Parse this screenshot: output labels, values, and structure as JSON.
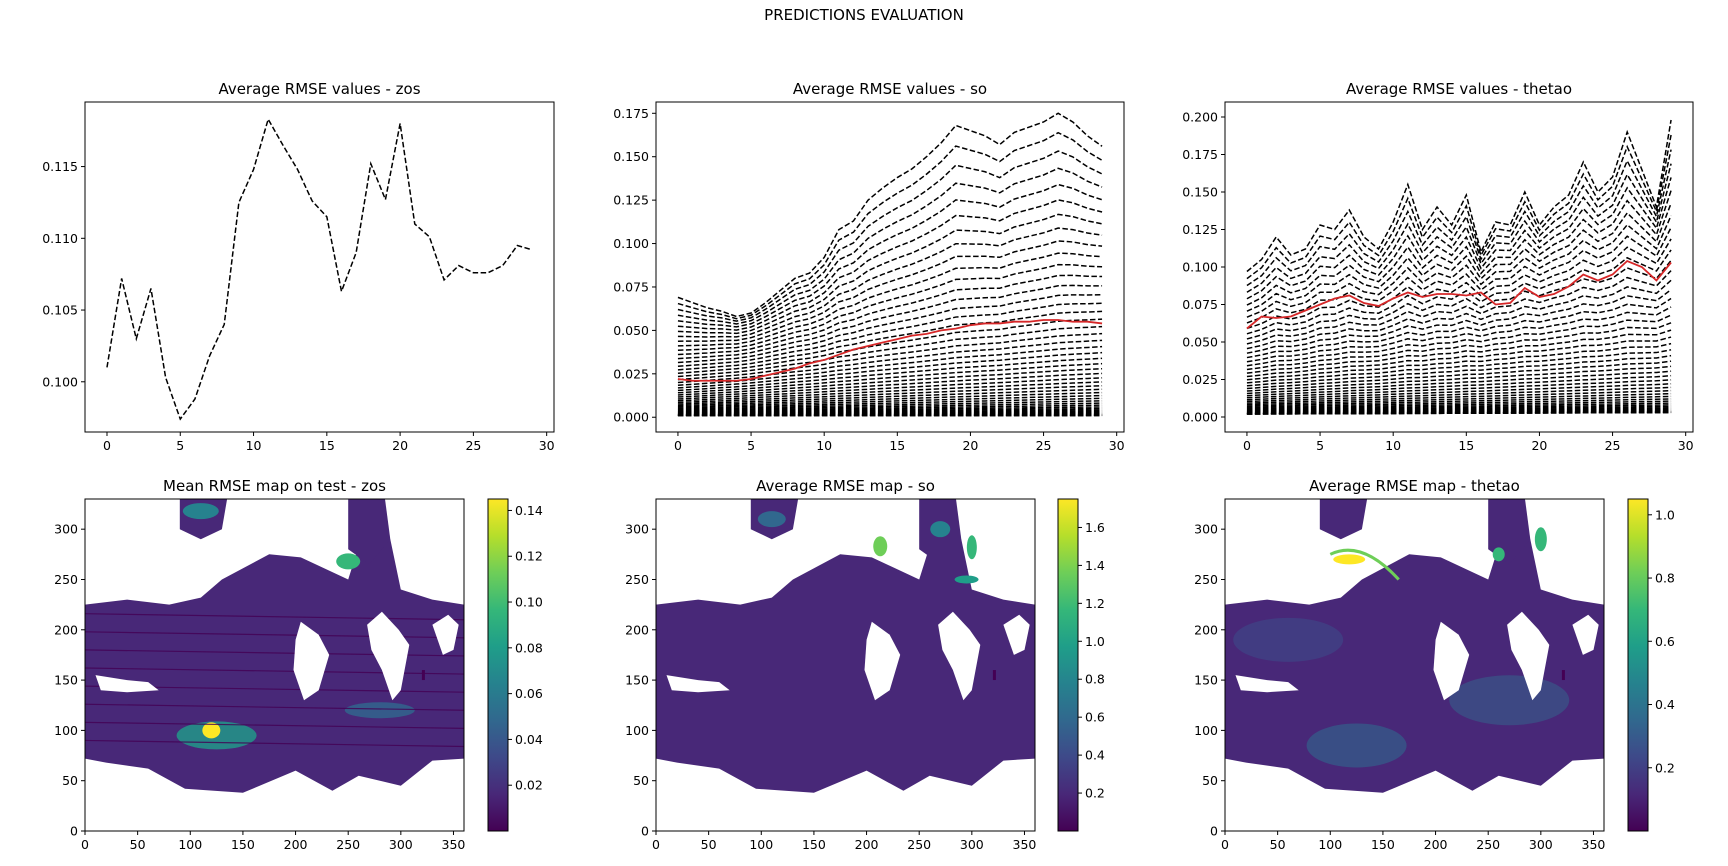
{
  "figure": {
    "suptitle": "PREDICTIONS EVALUATION"
  },
  "colors": {
    "series_black": "#000000",
    "series_red": "#d62728",
    "viridis": [
      "#440154",
      "#482878",
      "#3e4989",
      "#31688e",
      "#26828e",
      "#1f9e89",
      "#35b779",
      "#6ece58",
      "#b5de2b",
      "#fde725"
    ],
    "land": "#ffffff"
  },
  "chart_data": [
    {
      "id": "rmse-zos",
      "type": "line",
      "title": "Average RMSE values - zos",
      "xlim": [
        -1.5,
        30.5
      ],
      "ylim": [
        0.0965,
        0.1195
      ],
      "xticks": [
        0,
        5,
        10,
        15,
        20,
        25,
        30
      ],
      "yticks": [
        0.1,
        0.105,
        0.11,
        0.115
      ],
      "ytick_format": 3,
      "grid": false,
      "series": [
        {
          "style": "dashed",
          "color": "black",
          "x": [
            0,
            1,
            2,
            3,
            4,
            5,
            6,
            7,
            8,
            9,
            10,
            11,
            12,
            13,
            14,
            15,
            16,
            17,
            18,
            19,
            20,
            21,
            22,
            23,
            24,
            25,
            26,
            27,
            28,
            29
          ],
          "values": [
            0.101,
            0.1072,
            0.103,
            0.1065,
            0.1003,
            0.0974,
            0.0988,
            0.1018,
            0.104,
            0.1125,
            0.1148,
            0.1183,
            0.1165,
            0.1148,
            0.1126,
            0.1115,
            0.1063,
            0.109,
            0.1152,
            0.1127,
            0.118,
            0.111,
            0.1101,
            0.1071,
            0.1081,
            0.1076,
            0.1076,
            0.1081,
            0.1095,
            0.1092
          ]
        }
      ]
    },
    {
      "id": "rmse-so",
      "type": "line",
      "title": "Average RMSE values - so",
      "xlim": [
        -1.5,
        30.5
      ],
      "ylim": [
        -0.0085,
        0.1815
      ],
      "xticks": [
        0,
        5,
        10,
        15,
        20,
        25,
        30
      ],
      "yticks": [
        0.0,
        0.025,
        0.05,
        0.075,
        0.1,
        0.125,
        0.15,
        0.175
      ],
      "ytick_format": 3,
      "grid": false,
      "x": [
        0,
        1,
        2,
        3,
        4,
        5,
        6,
        7,
        8,
        9,
        10,
        11,
        12,
        13,
        14,
        15,
        16,
        17,
        18,
        19,
        20,
        21,
        22,
        23,
        24,
        25,
        26,
        27,
        28,
        29
      ],
      "black_dashed_depth_levels": 50,
      "level_endpoints": {
        "start_top": 0.069,
        "end_top": 0.156,
        "start_bottom": 0.001,
        "end_bottom": 0.001
      },
      "top_level_shape": [
        0.069,
        0.066,
        0.063,
        0.061,
        0.058,
        0.06,
        0.066,
        0.073,
        0.08,
        0.083,
        0.092,
        0.108,
        0.113,
        0.125,
        0.132,
        0.138,
        0.143,
        0.15,
        0.158,
        0.168,
        0.165,
        0.162,
        0.157,
        0.164,
        0.167,
        0.17,
        0.175,
        0.17,
        0.162,
        0.156
      ],
      "red_series": {
        "color": "red",
        "style": "solid",
        "values": [
          0.022,
          0.021,
          0.021,
          0.021,
          0.021,
          0.022,
          0.024,
          0.026,
          0.028,
          0.031,
          0.033,
          0.036,
          0.039,
          0.041,
          0.043,
          0.045,
          0.047,
          0.048,
          0.05,
          0.051,
          0.053,
          0.054,
          0.054,
          0.055,
          0.055,
          0.056,
          0.056,
          0.055,
          0.055,
          0.054
        ]
      }
    },
    {
      "id": "rmse-thetao",
      "type": "line",
      "title": "Average RMSE values - thetao",
      "xlim": [
        -1.5,
        30.5
      ],
      "ylim": [
        -0.01,
        0.21
      ],
      "xticks": [
        0,
        5,
        10,
        15,
        20,
        25,
        30
      ],
      "yticks": [
        0.0,
        0.025,
        0.05,
        0.075,
        0.1,
        0.125,
        0.15,
        0.175,
        0.2
      ],
      "ytick_format": 3,
      "grid": false,
      "x": [
        0,
        1,
        2,
        3,
        4,
        5,
        6,
        7,
        8,
        9,
        10,
        11,
        12,
        13,
        14,
        15,
        16,
        17,
        18,
        19,
        20,
        21,
        22,
        23,
        24,
        25,
        26,
        27,
        28,
        29
      ],
      "black_dashed_depth_levels": 50,
      "level_endpoints": {
        "start_top": 0.1,
        "end_top": 0.2,
        "start_bottom": 0.002,
        "end_bottom": 0.003
      },
      "top_level_shape": [
        0.097,
        0.105,
        0.12,
        0.108,
        0.112,
        0.128,
        0.125,
        0.138,
        0.12,
        0.112,
        0.13,
        0.155,
        0.125,
        0.14,
        0.128,
        0.148,
        0.11,
        0.13,
        0.128,
        0.15,
        0.128,
        0.14,
        0.148,
        0.17,
        0.15,
        0.16,
        0.19,
        0.165,
        0.14,
        0.198
      ],
      "red_series": {
        "color": "red",
        "style": "solid",
        "values": [
          0.059,
          0.067,
          0.066,
          0.067,
          0.071,
          0.075,
          0.079,
          0.081,
          0.076,
          0.074,
          0.079,
          0.083,
          0.08,
          0.082,
          0.082,
          0.081,
          0.083,
          0.075,
          0.076,
          0.086,
          0.08,
          0.082,
          0.087,
          0.095,
          0.091,
          0.095,
          0.104,
          0.1,
          0.091,
          0.103
        ]
      }
    },
    {
      "id": "map-zos",
      "type": "heatmap",
      "title": "Mean RMSE map on test - zos",
      "xlim": [
        0,
        360
      ],
      "ylim": [
        0,
        330
      ],
      "xticks": [
        0,
        50,
        100,
        150,
        200,
        250,
        300,
        350
      ],
      "yticks": [
        0,
        50,
        100,
        150,
        200,
        250,
        300
      ],
      "colorbar": {
        "cmap": "viridis",
        "vmin": 0.0,
        "vmax": 0.145,
        "ticks": [
          0.02,
          0.04,
          0.06,
          0.08,
          0.1,
          0.12,
          0.14
        ],
        "format": 2
      }
    },
    {
      "id": "map-so",
      "type": "heatmap",
      "title": "Average RMSE map - so",
      "xlim": [
        0,
        360
      ],
      "ylim": [
        0,
        330
      ],
      "xticks": [
        0,
        50,
        100,
        150,
        200,
        250,
        300,
        350
      ],
      "yticks": [
        0,
        50,
        100,
        150,
        200,
        250,
        300
      ],
      "colorbar": {
        "cmap": "viridis",
        "vmin": 0.0,
        "vmax": 1.75,
        "ticks": [
          0.2,
          0.4,
          0.6,
          0.8,
          1.0,
          1.2,
          1.4,
          1.6
        ],
        "format": 1
      }
    },
    {
      "id": "map-thetao",
      "type": "heatmap",
      "title": "Average RMSE map - thetao",
      "xlim": [
        0,
        360
      ],
      "ylim": [
        0,
        330
      ],
      "xticks": [
        0,
        50,
        100,
        150,
        200,
        250,
        300,
        350
      ],
      "yticks": [
        0,
        50,
        100,
        150,
        200,
        250,
        300
      ],
      "colorbar": {
        "cmap": "viridis",
        "vmin": 0.0,
        "vmax": 1.05,
        "ticks": [
          0.2,
          0.4,
          0.6,
          0.8,
          1.0
        ],
        "format": 1
      }
    }
  ]
}
